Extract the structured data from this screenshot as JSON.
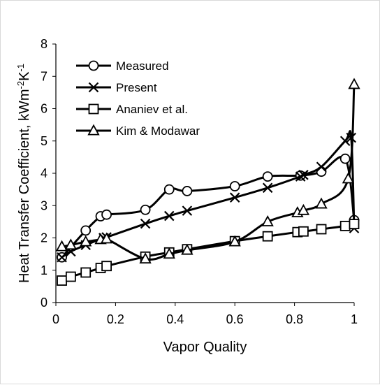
{
  "chart_data": {
    "type": "line",
    "xlabel": "Vapor Quality",
    "ylabel": "Heat Transfer Coefficient, kWm",
    "ylabel_sup1": "-2",
    "ylabel_mid": "K",
    "ylabel_sup2": "-1",
    "xlim": [
      0,
      1
    ],
    "ylim": [
      0,
      8
    ],
    "xticks": [
      "0",
      "0.2",
      "0.4",
      "0.6",
      "0.8",
      "1"
    ],
    "yticks": [
      "0",
      "1",
      "2",
      "3",
      "4",
      "5",
      "6",
      "7",
      "8"
    ],
    "grid": false,
    "legend_position": "top-left",
    "series": [
      {
        "name": "Measured",
        "marker": "circle",
        "x": [
          0.02,
          0.1,
          0.15,
          0.17,
          0.3,
          0.38,
          0.44,
          0.6,
          0.71,
          0.82,
          0.89,
          0.97,
          1.0
        ],
        "y": [
          1.4,
          2.23,
          2.67,
          2.72,
          2.87,
          3.5,
          3.45,
          3.6,
          3.9,
          3.93,
          4.05,
          4.45,
          2.55
        ]
      },
      {
        "name": "Present",
        "marker": "x",
        "x": [
          0.02,
          0.05,
          0.1,
          0.16,
          0.17,
          0.3,
          0.38,
          0.44,
          0.6,
          0.71,
          0.82,
          0.83,
          0.89,
          0.97,
          0.99,
          1.0
        ],
        "y": [
          1.4,
          1.58,
          1.78,
          2.0,
          2.02,
          2.44,
          2.68,
          2.84,
          3.25,
          3.55,
          3.9,
          3.95,
          4.2,
          5.0,
          5.1,
          2.3
        ]
      },
      {
        "name": "Ananiev et al.",
        "marker": "square",
        "x": [
          0.02,
          0.05,
          0.1,
          0.15,
          0.17,
          0.3,
          0.38,
          0.44,
          0.6,
          0.71,
          0.81,
          0.83,
          0.89,
          0.97,
          1.0
        ],
        "y": [
          0.68,
          0.8,
          0.93,
          1.07,
          1.13,
          1.42,
          1.55,
          1.65,
          1.9,
          2.05,
          2.18,
          2.2,
          2.27,
          2.37,
          2.43
        ]
      },
      {
        "name": "Kim & Modawar",
        "marker": "triangle",
        "x": [
          0.02,
          0.05,
          0.1,
          0.15,
          0.17,
          0.3,
          0.38,
          0.44,
          0.6,
          0.71,
          0.81,
          0.83,
          0.89,
          0.98,
          1.0
        ],
        "y": [
          1.73,
          1.78,
          1.88,
          1.95,
          1.97,
          1.35,
          1.5,
          1.62,
          1.88,
          2.5,
          2.78,
          2.85,
          3.05,
          3.83,
          6.75
        ]
      }
    ]
  },
  "style": {
    "line_color": "#000000",
    "marker_fill": "#ffffff",
    "frame_color": "#d9d9d9"
  }
}
